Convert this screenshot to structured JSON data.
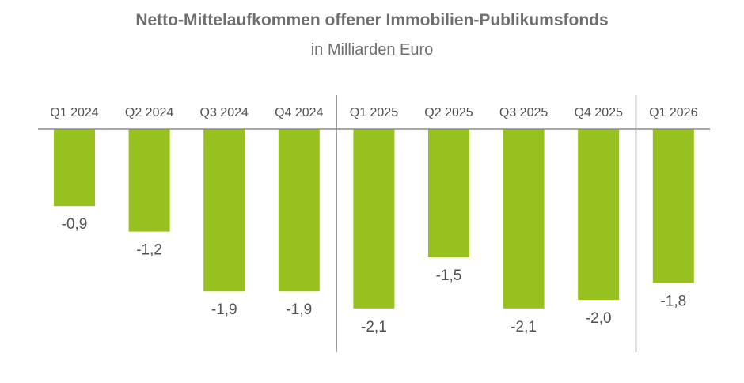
{
  "chart_data": {
    "type": "bar",
    "title": "Netto-Mittelaufkommen offener Immobilien-Publikumsfonds",
    "subtitle": "in Milliarden Euro",
    "categories": [
      "Q1 2024",
      "Q2 2024",
      "Q3 2024",
      "Q4 2024",
      "Q1 2025",
      "Q2 2025",
      "Q3 2025",
      "Q4 2025",
      "Q1 2026"
    ],
    "values": [
      -0.9,
      -1.2,
      -1.9,
      -1.9,
      -2.1,
      -1.5,
      -2.1,
      -2.0,
      -1.8
    ],
    "value_labels": [
      "-0,9",
      "-1,2",
      "-1,9",
      "-1,9",
      "-2,1",
      "-1,5",
      "-2,1",
      "-2,0",
      "-1,8"
    ],
    "ylim": [
      -2.1,
      0
    ],
    "grid": false,
    "legend": "none",
    "bar_color": "#96c11f",
    "axis_color": "#8c8c8c",
    "text_color": "#505050",
    "title_color": "#6e6e6e",
    "separator_after": [
      "Q4 2024",
      "Q4 2025"
    ]
  }
}
